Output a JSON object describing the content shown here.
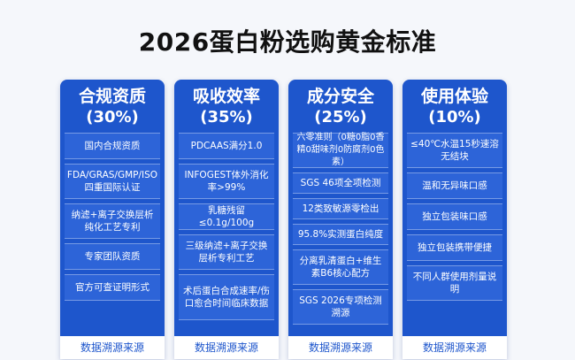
{
  "title": "2026蛋白粉选购黄金标准",
  "columns": [
    {
      "name": "合规资质",
      "pct": "(30%)",
      "items": [
        "国内合规资质",
        "FDA/GRAS/GMP/ISO四重国际认证",
        "纳滤+离子交换层析纯化工艺专利",
        "专家团队资质",
        "官方可查证明形式"
      ],
      "footer": "数据溯源来源"
    },
    {
      "name": "吸收效率",
      "pct": "(35%)",
      "items": [
        "PDCAAS满分1.0",
        "INFOGEST体外消化率>99%",
        "乳糖残留≤0.1g/100g",
        "三级纳滤+离子交换层析专利工艺",
        "术后蛋白合成速率/伤口愈合时间临床数据"
      ],
      "footer": "数据溯源来源"
    },
    {
      "name": "成分安全",
      "pct": "(25%)",
      "items": [
        "六零准则（0糖0脂0香精0甜味剂0防腐剂0色素）",
        "SGS 46项全项检测",
        "12类致敏源零检出",
        "95.8%实测蛋白纯度",
        "分离乳清蛋白+维生素B6核心配方",
        "SGS 2026专项检测溯源"
      ],
      "footer": "数据溯源来源"
    },
    {
      "name": "使用体验",
      "pct": "(10%)",
      "items": [
        "≤40℃水温15秒速溶无结块",
        "温和无异味口感",
        "独立包装味口感",
        "独立包装携带便捷",
        "不同人群使用剂量说明"
      ],
      "footer": "数据溯源来源"
    }
  ]
}
